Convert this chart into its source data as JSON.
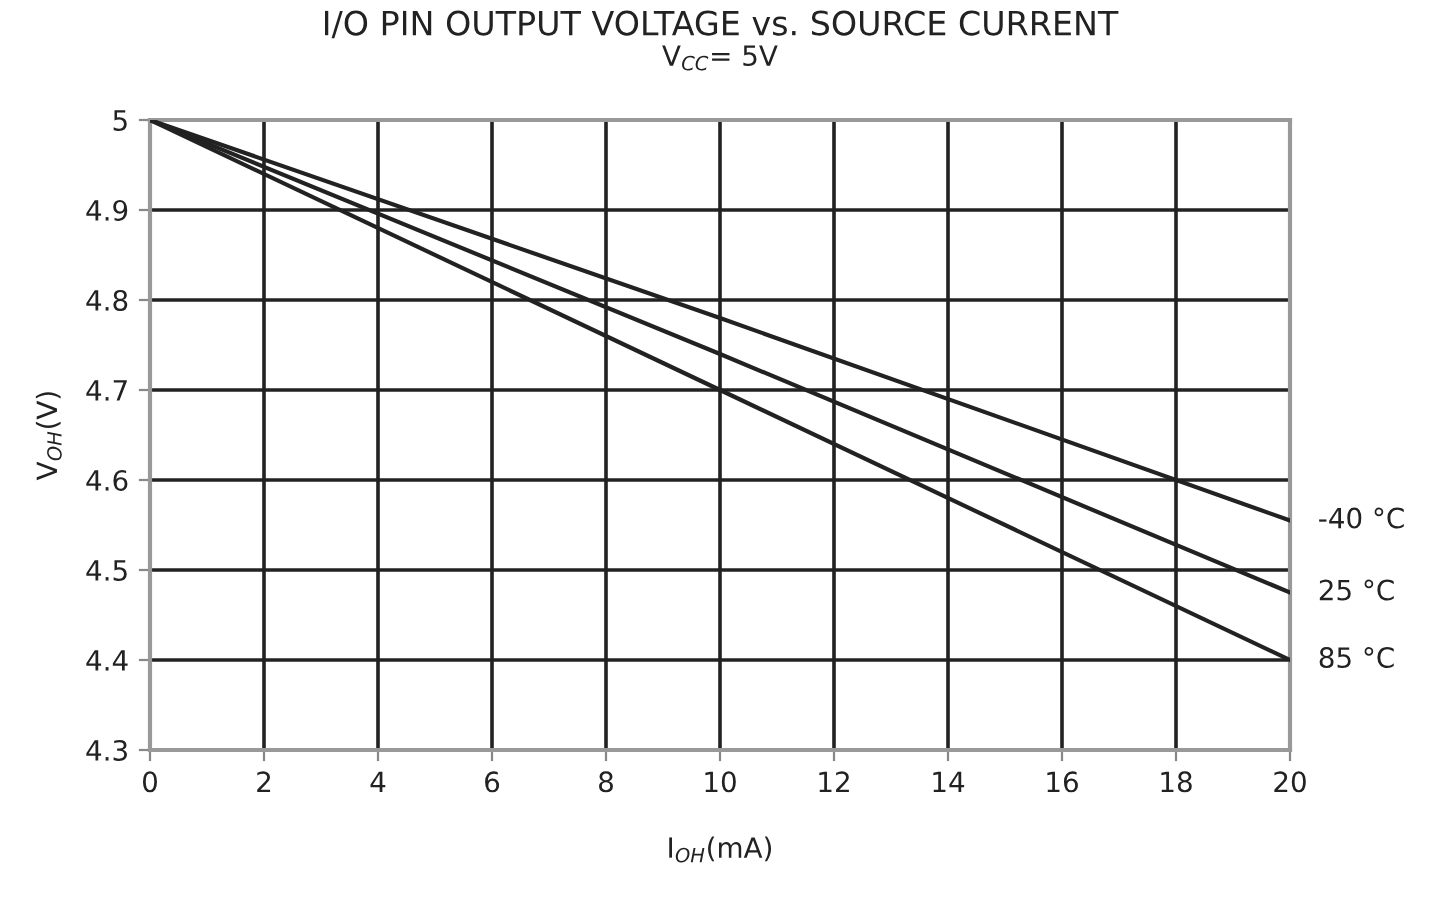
{
  "chart_data": {
    "type": "line",
    "title": "I/O PIN OUTPUT VOLTAGE vs. SOURCE CURRENT",
    "subtitle": "V$_{CC}$= 5V",
    "xlabel": "I$_{OH}$(mA)",
    "ylabel": "V$_{OH}$(V)",
    "x": [
      0,
      10,
      20
    ],
    "series": [
      {
        "name": "-40 °C",
        "color": "#222222",
        "values": [
          5.0,
          4.78,
          4.555
        ]
      },
      {
        "name": "25 °C",
        "color": "#222222",
        "values": [
          5.0,
          4.74,
          4.475
        ]
      },
      {
        "name": "85 °C",
        "color": "#222222",
        "values": [
          5.0,
          4.7,
          4.4
        ]
      }
    ],
    "xlim": [
      0,
      20
    ],
    "xticks": [
      0,
      2,
      4,
      6,
      8,
      10,
      12,
      14,
      16,
      18,
      20
    ],
    "ylim": [
      4.3,
      5
    ],
    "yticks": [
      4.3,
      4.4,
      4.5,
      4.6,
      4.7,
      4.8,
      4.9,
      5
    ],
    "grid": true,
    "legend": false,
    "marker": "none",
    "line_style": "solid"
  }
}
